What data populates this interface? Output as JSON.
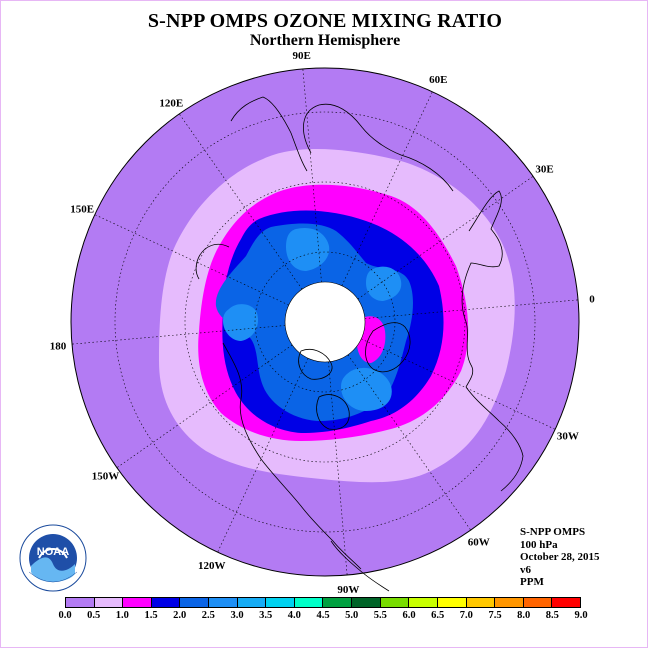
{
  "header": {
    "title": "S-NPP OMPS OZONE MIXING RATIO",
    "subtitle": "Northern Hemisphere"
  },
  "map": {
    "projection": "north-polar-stereographic",
    "longitude_labels": [
      "90E",
      "60E",
      "30E",
      "0",
      "30W",
      "60W",
      "90W",
      "120W",
      "150W",
      "180",
      "150E",
      "120E"
    ],
    "longitude_label_values": [
      90,
      60,
      30,
      0,
      -30,
      -60,
      -90,
      -120,
      -150,
      180,
      150,
      120
    ],
    "no_data_region": "polar night (white)"
  },
  "info": {
    "line1": "S-NPP OMPS",
    "line2": "100 hPa",
    "line3": "October 28, 2015",
    "line4": "v6",
    "line5": "PPM"
  },
  "colorbar": {
    "ticks": [
      "0.0",
      "0.5",
      "1.0",
      "1.5",
      "2.0",
      "2.5",
      "3.0",
      "3.5",
      "4.0",
      "4.5",
      "5.0",
      "5.5",
      "6.0",
      "6.5",
      "7.0",
      "7.5",
      "8.0",
      "8.5",
      "9.0"
    ],
    "colors": [
      "#b37bf3",
      "#e6bbfd",
      "#ff00ff",
      "#0000e6",
      "#0a64e6",
      "#1e8ff5",
      "#16acf5",
      "#00d2f0",
      "#00ffc8",
      "#00a040",
      "#006428",
      "#78dc00",
      "#c8ff00",
      "#ffff00",
      "#ffc800",
      "#ff9600",
      "#ff6400",
      "#ff0000",
      "#8b5a3c"
    ]
  },
  "logo": {
    "name": "NOAA",
    "ring_text": "NATIONAL OCEANIC AND ATMOSPHERIC ADMINISTRATION · U.S. DEPARTMENT OF COMMERCE"
  }
}
